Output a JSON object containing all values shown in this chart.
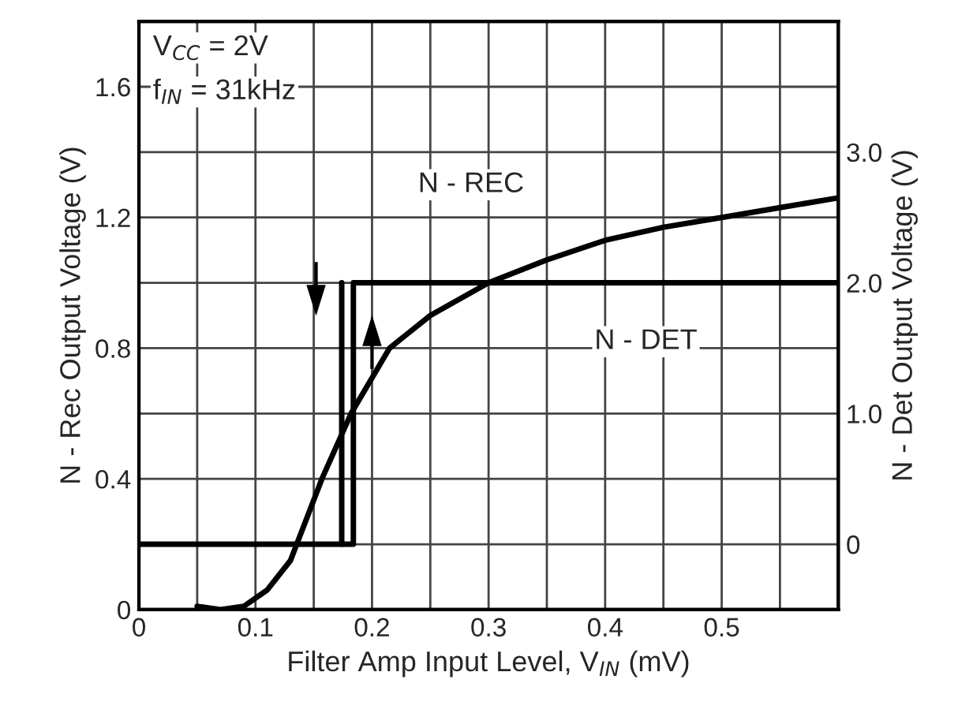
{
  "chart_data": {
    "type": "line",
    "xlabel": "Filter Amp Input Level, V$_{IN}$ (mV)",
    "ylabel": "N - Rec Output Voltage (V)",
    "y2label": "N - Det Output Voltage (V)",
    "annotations": [
      "V$_{CC}$ = 2V",
      "f$_{IN}$ = 31kHz"
    ],
    "series": [
      {
        "name": "N - REC",
        "color": "#000000",
        "x": [
          0.05,
          0.07,
          0.09,
          0.11,
          0.13,
          0.157,
          0.182,
          0.215,
          0.25,
          0.3,
          0.35,
          0.4,
          0.45,
          0.5,
          0.55,
          0.6
        ],
        "values": [
          0.01,
          0.0,
          0.01,
          0.06,
          0.15,
          0.4,
          0.6,
          0.8,
          0.9,
          1.0,
          1.07,
          1.13,
          1.17,
          1.2,
          1.23,
          1.26
        ]
      },
      {
        "name": "N - DET",
        "color": "#000000",
        "axis": "y2",
        "x": [
          0,
          0.184,
          0.184,
          0.6
        ],
        "values": [
          0,
          0,
          2,
          2
        ]
      },
      {
        "color": "#000000",
        "axis": "y2",
        "x": [
          0.174,
          0.174
        ],
        "values": [
          0,
          2
        ]
      }
    ],
    "xlim": [
      0,
      0.6
    ],
    "xticks": [
      0,
      0.1,
      0.2,
      0.3,
      0.4,
      0.5
    ],
    "ylim": [
      0,
      1.8
    ],
    "yticks": [
      0,
      0.4,
      0.8,
      1.2,
      1.6
    ],
    "y2lim": [
      -0.5,
      4.0
    ],
    "y2ticks": [
      0,
      {
        "value": 1,
        "label": "1.0"
      },
      {
        "value": 2,
        "label": "2.0"
      },
      {
        "value": 3,
        "label": "3.0"
      }
    ],
    "grid": true,
    "legend": false,
    "marker": "none",
    "line_style": "solid"
  }
}
